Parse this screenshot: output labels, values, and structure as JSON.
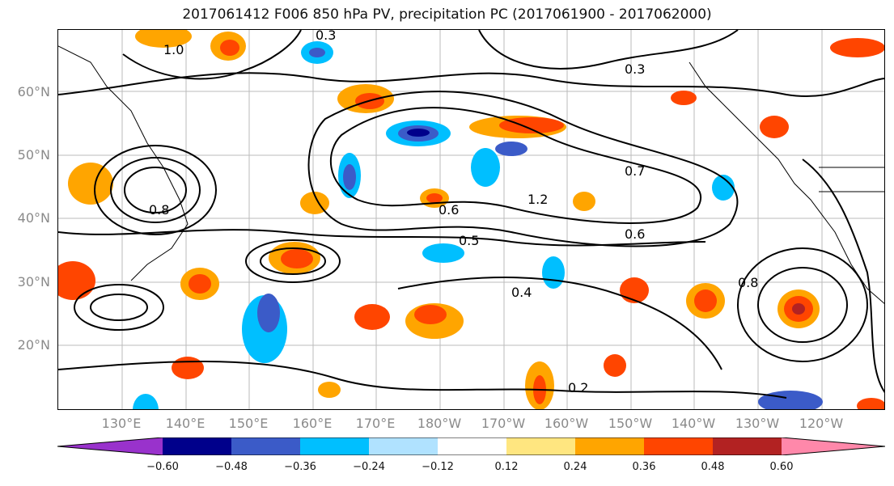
{
  "title": "2017061412 F006 850 hPa PV, precipitation PC (2017061900 - 2017062000)",
  "lat_labels": [
    "60°N",
    "50°N",
    "40°N",
    "30°N",
    "20°N"
  ],
  "lon_labels": [
    "130°E",
    "140°E",
    "150°E",
    "160°E",
    "170°E",
    "180°W",
    "170°W",
    "160°W",
    "150°W",
    "140°W",
    "130°W",
    "120°W"
  ],
  "contour_labels": [
    "0.3",
    "1.0",
    "0.8",
    "0.6",
    "0.5",
    "0.7",
    "1.2",
    "0.2",
    "0.4",
    "0.3",
    "0.8",
    "0.6"
  ],
  "colorbar": {
    "ticks": [
      "−0.60",
      "−0.48",
      "−0.36",
      "−0.24",
      "−0.12",
      "0.12",
      "0.24",
      "0.36",
      "0.48",
      "0.60"
    ],
    "colors": [
      "#9932CC",
      "#00008B",
      "#3B5BC8",
      "#00BFFF",
      "#B0E2FF",
      "#FFFFFF",
      "#FFE680",
      "#FFA500",
      "#FF4500",
      "#B22222",
      "#FF88AA"
    ]
  },
  "colors": {
    "negative_strong": "#00008B",
    "negative_mid": "#3B5BC8",
    "negative_light": "#00BFFF",
    "positive_light": "#FFE680",
    "positive_mid": "#FFA500",
    "positive_strong": "#FF4500"
  }
}
